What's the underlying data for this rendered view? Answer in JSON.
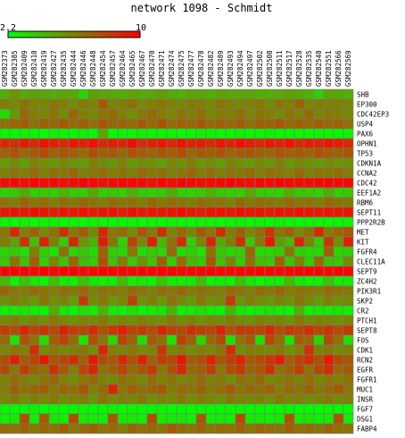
{
  "chart_data": {
    "type": "heatmap",
    "title": "network 1098 - Schmidt",
    "color_scale": {
      "min": 2.2,
      "max": 10,
      "min_label": "2.2",
      "max_label": "10",
      "low_color": "#00ff00",
      "mid_color": "#808000",
      "high_color": "#ff0000"
    },
    "columns": [
      "GSM282373",
      "GSM282385",
      "GSM282409",
      "GSM282410",
      "GSM282419",
      "GSM282427",
      "GSM282435",
      "GSM282444",
      "GSM282446",
      "GSM282448",
      "GSM282454",
      "GSM282457",
      "GSM282464",
      "GSM282465",
      "GSM282467",
      "GSM282470",
      "GSM282471",
      "GSM282474",
      "GSM282475",
      "GSM282477",
      "GSM282478",
      "GSM282482",
      "GSM282489",
      "GSM282493",
      "GSM282494",
      "GSM282497",
      "GSM282502",
      "GSM282508",
      "GSM282511",
      "GSM282517",
      "GSM282528",
      "GSM282535",
      "GSM282540",
      "GSM282551",
      "GSM282566",
      "GSM282569"
    ],
    "rows": [
      "SHB",
      "EP300",
      "CDC42EP3",
      "USP4",
      "PAX6",
      "OPHN1",
      "TP53",
      "CDKN1A",
      "CCNA2",
      "CDC42",
      "EEF1A2",
      "RBM6",
      "SEPT11",
      "PPP2R2B",
      "MET",
      "KIT",
      "FGFR4",
      "CLEC11A",
      "SEPT9",
      "ZC4H2",
      "PIK3R1",
      "SKP2",
      "CR2",
      "PTCH1",
      "SEPT8",
      "FOS",
      "CDK1",
      "RCN2",
      "EGFR",
      "FGFR1",
      "MUC1",
      "INSR",
      "FGF7",
      "DSG1",
      "FABP4"
    ],
    "values": [
      [
        4.6,
        5.5,
        4.8,
        5.1,
        4.9,
        4.7,
        5.0,
        4.8,
        3.5,
        5.1,
        4.9,
        4.8,
        4.6,
        5.0,
        4.7,
        4.9,
        5.2,
        4.8,
        4.6,
        5.0,
        4.9,
        4.7,
        5.1,
        4.8,
        4.9,
        5.0,
        4.7,
        4.6,
        4.9,
        5.1,
        4.8,
        4.5,
        3.6,
        5.0,
        4.8,
        4.6
      ],
      [
        6.2,
        5.8,
        6.5,
        6.0,
        5.9,
        6.4,
        6.1,
        5.7,
        6.3,
        6.0,
        7.3,
        5.9,
        6.2,
        6.6,
        5.8,
        6.1,
        6.4,
        6.0,
        5.9,
        6.3,
        6.2,
        5.8,
        6.5,
        6.1,
        5.9,
        6.0,
        6.3,
        5.8,
        6.4,
        6.1,
        7.0,
        5.9,
        6.2,
        6.0,
        6.1,
        5.9
      ],
      [
        3.2,
        5.4,
        6.8,
        6.2,
        5.9,
        6.5,
        5.7,
        6.9,
        6.1,
        5.8,
        6.4,
        6.7,
        6.0,
        5.6,
        6.3,
        6.8,
        6.2,
        5.9,
        6.5,
        6.0,
        6.6,
        5.8,
        6.3,
        6.1,
        6.7,
        5.9,
        6.4,
        6.2,
        5.7,
        6.5,
        6.0,
        6.8,
        5.9,
        6.3,
        6.1,
        5.8
      ],
      [
        6.6,
        6.9,
        7.2,
        6.5,
        7.0,
        6.8,
        7.3,
        6.7,
        7.1,
        6.6,
        7.4,
        6.9,
        7.0,
        6.7,
        7.2,
        6.8,
        7.5,
        6.6,
        7.1,
        6.9,
        7.3,
        6.7,
        7.0,
        6.8,
        7.2,
        6.6,
        7.1,
        6.9,
        7.4,
        6.7,
        7.0,
        6.8,
        7.2,
        6.9,
        7.1,
        6.6
      ],
      [
        2.4,
        2.3,
        2.5,
        2.4,
        2.3,
        2.6,
        2.4,
        2.3,
        2.5,
        2.4,
        4.8,
        2.3,
        2.5,
        2.4,
        2.6,
        2.3,
        2.4,
        2.5,
        2.3,
        2.4,
        2.6,
        2.5,
        2.3,
        2.4,
        2.5,
        2.3,
        2.4,
        2.6,
        2.3,
        2.5,
        2.4,
        2.3,
        2.5,
        2.4,
        2.3,
        2.4
      ],
      [
        8.8,
        8.5,
        9.2,
        8.7,
        9.4,
        9.0,
        8.6,
        9.3,
        8.9,
        9.5,
        8.7,
        9.1,
        8.8,
        9.6,
        8.5,
        9.0,
        9.2,
        8.7,
        9.4,
        8.9,
        9.1,
        8.6,
        9.3,
        8.8,
        9.5,
        9.0,
        8.7,
        9.2,
        8.9,
        9.4,
        8.6,
        9.1,
        8.8,
        9.3,
        9.0,
        8.7
      ],
      [
        7.0,
        7.5,
        6.8,
        7.2,
        7.7,
        6.9,
        7.4,
        7.1,
        6.7,
        7.6,
        7.0,
        7.3,
        6.8,
        7.5,
        7.2,
        6.9,
        7.4,
        7.1,
        7.7,
        6.8,
        7.3,
        7.0,
        7.6,
        6.9,
        7.2,
        7.4,
        7.0,
        6.8,
        7.5,
        7.1,
        7.3,
        6.9,
        7.6,
        7.2,
        7.0,
        7.4
      ],
      [
        5.4,
        5.8,
        5.1,
        6.0,
        5.6,
        5.3,
        5.9,
        5.5,
        5.2,
        6.1,
        5.7,
        5.4,
        6.0,
        5.3,
        5.8,
        5.6,
        5.1,
        5.9,
        5.5,
        6.2,
        5.4,
        5.7,
        5.2,
        6.0,
        5.6,
        5.3,
        5.8,
        5.5,
        6.1,
        5.4,
        5.9,
        5.6,
        5.2,
        5.8,
        5.5,
        5.7
      ],
      [
        6.0,
        6.5,
        6.2,
        6.8,
        6.1,
        6.6,
        6.3,
        6.9,
        6.0,
        6.4,
        6.7,
        6.2,
        6.5,
        6.1,
        6.8,
        6.3,
        6.6,
        6.0,
        6.4,
        6.9,
        6.2,
        6.7,
        6.1,
        6.5,
        6.3,
        6.8,
        6.0,
        6.6,
        6.4,
        6.2,
        6.9,
        6.1,
        6.5,
        6.3,
        6.7,
        6.2
      ],
      [
        9.7,
        9.8,
        9.6,
        9.9,
        9.7,
        9.8,
        9.6,
        9.7,
        9.9,
        9.8,
        9.6,
        9.7,
        9.8,
        9.9,
        9.7,
        9.6,
        9.8,
        9.7,
        9.9,
        9.8,
        9.6,
        9.7,
        9.8,
        9.9,
        9.7,
        9.6,
        9.8,
        9.7,
        9.9,
        9.8,
        9.6,
        9.7,
        9.8,
        9.9,
        9.7,
        9.8
      ],
      [
        3.6,
        3.8,
        4.8,
        3.7,
        3.9,
        3.6,
        4.6,
        3.8,
        3.7,
        4.9,
        3.6,
        3.9,
        3.7,
        4.7,
        3.8,
        3.6,
        3.9,
        4.8,
        3.7,
        3.6,
        3.8,
        4.6,
        3.9,
        3.7,
        3.6,
        4.9,
        3.8,
        3.7,
        3.6,
        4.7,
        3.9,
        3.8,
        3.6,
        4.8,
        3.7,
        3.9
      ],
      [
        6.6,
        6.2,
        6.9,
        6.4,
        6.8,
        6.1,
        6.7,
        6.3,
        6.9,
        6.5,
        6.2,
        6.8,
        6.4,
        6.6,
        6.1,
        6.9,
        6.3,
        6.7,
        6.5,
        6.2,
        6.8,
        6.4,
        6.6,
        6.0,
        6.9,
        6.3,
        6.7,
        6.5,
        6.2,
        6.8,
        6.4,
        6.6,
        6.1,
        6.9,
        6.5,
        6.3
      ],
      [
        9.3,
        9.5,
        9.2,
        9.6,
        9.4,
        9.1,
        9.5,
        9.3,
        9.6,
        9.2,
        9.4,
        9.5,
        9.1,
        9.6,
        9.3,
        9.4,
        9.2,
        9.5,
        9.6,
        9.3,
        9.1,
        9.4,
        9.5,
        9.2,
        9.6,
        9.3,
        9.4,
        9.1,
        9.5,
        9.2,
        9.6,
        9.4,
        9.3,
        9.5,
        9.2,
        9.4
      ],
      [
        2.4,
        2.3,
        2.5,
        2.3,
        2.4,
        2.5,
        2.3,
        2.4,
        2.3,
        2.5,
        2.4,
        2.3,
        2.4,
        2.5,
        2.3,
        2.4,
        2.3,
        2.5,
        2.4,
        2.3,
        2.5,
        2.4,
        2.3,
        2.4,
        2.5,
        2.3,
        2.4,
        2.3,
        2.5,
        2.4,
        2.3,
        2.5,
        2.4,
        2.3,
        2.4,
        2.5
      ],
      [
        6.5,
        8.8,
        6.1,
        7.0,
        5.8,
        6.6,
        8.5,
        6.3,
        7.2,
        5.9,
        8.9,
        6.4,
        6.8,
        5.7,
        7.5,
        6.2,
        8.7,
        6.0,
        6.9,
        5.8,
        7.3,
        6.5,
        8.6,
        6.1,
        7.0,
        5.9,
        6.7,
        8.4,
        6.3,
        7.1,
        5.8,
        6.6,
        8.8,
        6.2,
        6.9,
        7.4
      ],
      [
        6.2,
        5.0,
        8.5,
        4.2,
        9.0,
        6.0,
        3.8,
        8.8,
        5.5,
        4.5,
        9.2,
        6.3,
        3.5,
        8.0,
        5.8,
        9.1,
        4.4,
        6.5,
        8.7,
        3.6,
        5.9,
        9.0,
        4.8,
        6.1,
        8.6,
        3.9,
        6.4,
        9.3,
        5.2,
        4.3,
        8.9,
        6.0,
        3.7,
        8.4,
        5.6,
        9.1
      ],
      [
        3.4,
        3.8,
        3.2,
        6.2,
        3.6,
        3.1,
        6.6,
        3.5,
        3.9,
        3.3,
        7.0,
        3.7,
        3.4,
        6.4,
        3.2,
        3.8,
        3.5,
        6.8,
        3.3,
        3.6,
        3.1,
        6.5,
        3.9,
        3.4,
        3.7,
        6.9,
        3.2,
        3.5,
        3.8,
        6.3,
        3.6,
        3.3,
        3.4,
        7.1,
        3.5,
        3.7
      ],
      [
        3.8,
        6.5,
        4.0,
        7.2,
        3.6,
        5.8,
        3.9,
        6.9,
        4.2,
        3.7,
        7.5,
        4.1,
        6.2,
        3.8,
        5.5,
        4.0,
        7.0,
        3.6,
        6.7,
        4.3,
        3.9,
        7.3,
        4.0,
        5.9,
        3.7,
        6.6,
        4.2,
        3.8,
        7.1,
        4.0,
        6.0,
        3.6,
        6.8,
        4.1,
        3.9,
        5.7
      ],
      [
        9.9,
        9.8,
        9.9,
        9.7,
        9.9,
        9.8,
        9.9,
        9.9,
        9.7,
        9.8,
        9.9,
        9.9,
        9.8,
        9.7,
        9.9,
        9.8,
        9.9,
        9.9,
        9.7,
        9.8,
        9.9,
        9.9,
        9.8,
        9.7,
        9.9,
        9.8,
        9.9,
        9.9,
        9.7,
        9.8,
        9.9,
        9.9,
        9.8,
        9.7,
        9.9,
        9.8
      ],
      [
        4.3,
        2.6,
        4.0,
        2.8,
        2.5,
        4.2,
        2.7,
        2.6,
        4.1,
        2.8,
        2.5,
        2.7,
        4.3,
        2.6,
        2.8,
        2.5,
        4.0,
        2.7,
        2.6,
        2.8,
        4.2,
        2.5,
        2.7,
        2.6,
        4.1,
        2.8,
        2.5,
        2.7,
        2.6,
        4.3,
        2.8,
        2.5,
        2.6,
        4.0,
        2.7,
        2.8
      ],
      [
        6.9,
        6.4,
        6.2,
        6.8,
        6.5,
        6.1,
        6.7,
        6.3,
        6.9,
        6.0,
        6.6,
        6.4,
        6.2,
        6.8,
        6.5,
        6.1,
        6.7,
        6.3,
        6.9,
        6.2,
        6.6,
        6.4,
        6.0,
        6.8,
        6.5,
        6.1,
        6.7,
        6.3,
        6.9,
        6.2,
        6.6,
        6.4,
        6.1,
        6.8,
        6.5,
        6.3
      ],
      [
        5.5,
        6.2,
        5.8,
        5.3,
        6.5,
        5.6,
        6.0,
        5.2,
        8.2,
        5.7,
        6.3,
        5.4,
        5.9,
        8.0,
        5.5,
        6.1,
        5.3,
        6.6,
        5.8,
        5.2,
        6.4,
        5.6,
        5.9,
        8.3,
        5.4,
        6.2,
        5.7,
        5.3,
        6.0,
        5.5,
        6.5,
        5.8,
        5.2,
        6.1,
        5.6,
        5.9
      ],
      [
        2.6,
        2.8,
        3.0,
        2.7,
        2.5,
        4.8,
        2.9,
        2.6,
        3.1,
        2.7,
        4.5,
        2.8,
        2.6,
        3.0,
        2.5,
        2.7,
        2.9,
        4.6,
        2.6,
        2.8,
        3.1,
        2.7,
        2.5,
        4.4,
        2.9,
        2.6,
        2.8,
        3.0,
        2.7,
        2.5,
        4.7,
        2.6,
        2.9,
        2.8,
        3.0,
        2.7
      ],
      [
        5.8,
        6.2,
        5.5,
        6.0,
        5.7,
        6.4,
        5.9,
        5.6,
        6.1,
        5.8,
        6.3,
        5.5,
        6.0,
        5.7,
        6.2,
        5.9,
        5.6,
        6.4,
        5.8,
        6.1,
        5.5,
        6.0,
        5.7,
        6.3,
        5.9,
        5.6,
        6.2,
        5.8,
        6.0,
        5.5,
        6.4,
        5.7,
        6.1,
        5.9,
        5.6,
        6.0
      ],
      [
        8.2,
        7.6,
        8.8,
        7.9,
        8.5,
        7.7,
        9.0,
        8.1,
        7.8,
        8.7,
        7.5,
        8.4,
        9.1,
        7.9,
        8.3,
        7.6,
        8.9,
        8.0,
        7.7,
        8.6,
        8.2,
        7.8,
        9.0,
        7.5,
        8.4,
        8.1,
        7.9,
        8.8,
        7.6,
        8.3,
        8.0,
        8.7,
        7.8,
        8.5,
        7.7,
        8.2
      ],
      [
        6.8,
        3.0,
        7.5,
        6.5,
        3.3,
        7.2,
        8.0,
        6.7,
        3.1,
        7.6,
        6.4,
        3.4,
        7.9,
        6.9,
        3.2,
        7.3,
        6.6,
        3.0,
        8.1,
        7.0,
        3.5,
        6.8,
        7.7,
        3.2,
        6.5,
        7.4,
        3.3,
        8.0,
        6.7,
        3.1,
        7.2,
        6.9,
        3.4,
        7.8,
        6.6,
        3.2
      ],
      [
        5.9,
        6.4,
        6.0,
        8.6,
        5.7,
        6.3,
        5.8,
        6.1,
        6.5,
        5.6,
        8.9,
        6.2,
        5.9,
        6.4,
        5.7,
        6.0,
        8.4,
        5.8,
        6.3,
        5.6,
        6.1,
        5.9,
        6.5,
        8.7,
        5.7,
        6.2,
        6.0,
        5.8,
        6.4,
        5.6,
        6.1,
        8.5,
        5.9,
        6.3,
        5.7,
        6.0
      ],
      [
        7.6,
        9.0,
        7.2,
        8.0,
        9.3,
        7.4,
        7.9,
        8.6,
        7.1,
        9.2,
        7.7,
        7.3,
        8.8,
        7.5,
        9.1,
        7.0,
        8.2,
        7.8,
        9.4,
        7.2,
        7.6,
        8.9,
        7.4,
        8.1,
        9.0,
        7.3,
        7.7,
        8.4,
        9.2,
        7.1,
        7.9,
        8.7,
        7.5,
        9.3,
        7.8,
        7.4
      ],
      [
        7.8,
        6.4,
        8.2,
        7.0,
        6.6,
        8.5,
        7.3,
        6.2,
        7.9,
        8.8,
        6.5,
        7.1,
        8.0,
        6.8,
        7.5,
        8.3,
        6.3,
        7.6,
        8.9,
        6.7,
        7.2,
        8.1,
        6.4,
        7.7,
        8.4,
        6.9,
        7.4,
        8.6,
        6.6,
        7.0,
        8.2,
        6.5,
        7.8,
        8.7,
        6.8,
        7.3
      ],
      [
        6.0,
        6.7,
        6.2,
        5.8,
        6.5,
        6.9,
        6.1,
        5.7,
        6.4,
        6.8,
        6.0,
        5.9,
        6.6,
        6.3,
        5.8,
        6.7,
        6.1,
        6.5,
        5.9,
        6.2,
        6.8,
        6.0,
        6.4,
        5.7,
        6.6,
        6.3,
        6.9,
        5.8,
        6.1,
        6.5,
        6.0,
        6.7,
        5.9,
        6.4,
        6.2,
        6.6
      ],
      [
        6.2,
        7.0,
        6.5,
        6.8,
        7.2,
        6.3,
        6.9,
        6.6,
        7.4,
        6.1,
        6.7,
        8.9,
        6.4,
        7.1,
        6.6,
        6.9,
        7.3,
        6.2,
        6.8,
        6.5,
        7.0,
        6.3,
        6.7,
        7.2,
        6.4,
        6.9,
        6.6,
        7.1,
        6.2,
        6.8,
        6.5,
        7.0,
        6.3,
        6.7,
        7.3,
        6.4
      ],
      [
        5.9,
        6.3,
        5.6,
        6.1,
        5.8,
        6.4,
        5.7,
        6.0,
        6.2,
        5.5,
        6.5,
        5.8,
        6.1,
        5.9,
        6.3,
        5.6,
        6.0,
        5.8,
        6.4,
        5.7,
        6.2,
        5.9,
        5.5,
        6.3,
        6.0,
        5.8,
        6.1,
        5.6,
        6.4,
        5.9,
        6.2,
        5.7,
        6.0,
        6.3,
        5.8,
        6.1
      ],
      [
        2.4,
        2.3,
        2.4,
        2.5,
        2.3,
        2.4,
        2.3,
        2.5,
        2.4,
        2.3,
        2.4,
        2.5,
        2.3,
        2.4,
        2.3,
        2.4,
        2.5,
        2.3,
        2.4,
        2.3,
        2.5,
        2.4,
        2.3,
        2.4,
        2.5,
        2.3,
        2.4,
        2.3,
        2.4,
        2.5,
        2.3,
        2.4,
        2.3,
        2.5,
        2.4,
        2.3
      ],
      [
        2.6,
        2.8,
        7.6,
        2.7,
        7.2,
        2.9,
        2.6,
        7.8,
        2.8,
        2.7,
        2.6,
        7.4,
        2.9,
        2.8,
        2.6,
        7.7,
        2.7,
        2.8,
        2.9,
        2.6,
        7.3,
        2.7,
        2.8,
        2.6,
        7.9,
        2.9,
        2.7,
        2.6,
        2.8,
        7.5,
        2.7,
        2.9,
        2.6,
        2.8,
        7.6,
        2.7
      ],
      [
        6.8,
        6.5,
        7.0,
        6.3,
        6.9,
        6.6,
        7.2,
        6.4,
        6.7,
        7.1,
        6.5,
        6.8,
        6.2,
        7.0,
        6.6,
        6.9,
        6.4,
        7.3,
        6.7,
        6.5,
        7.0,
        6.3,
        6.8,
        6.6,
        7.1,
        6.4,
        6.9,
        6.7,
        6.5,
        7.2,
        6.6,
        6.8,
        6.3,
        7.0,
        6.7,
        6.5
      ]
    ]
  }
}
